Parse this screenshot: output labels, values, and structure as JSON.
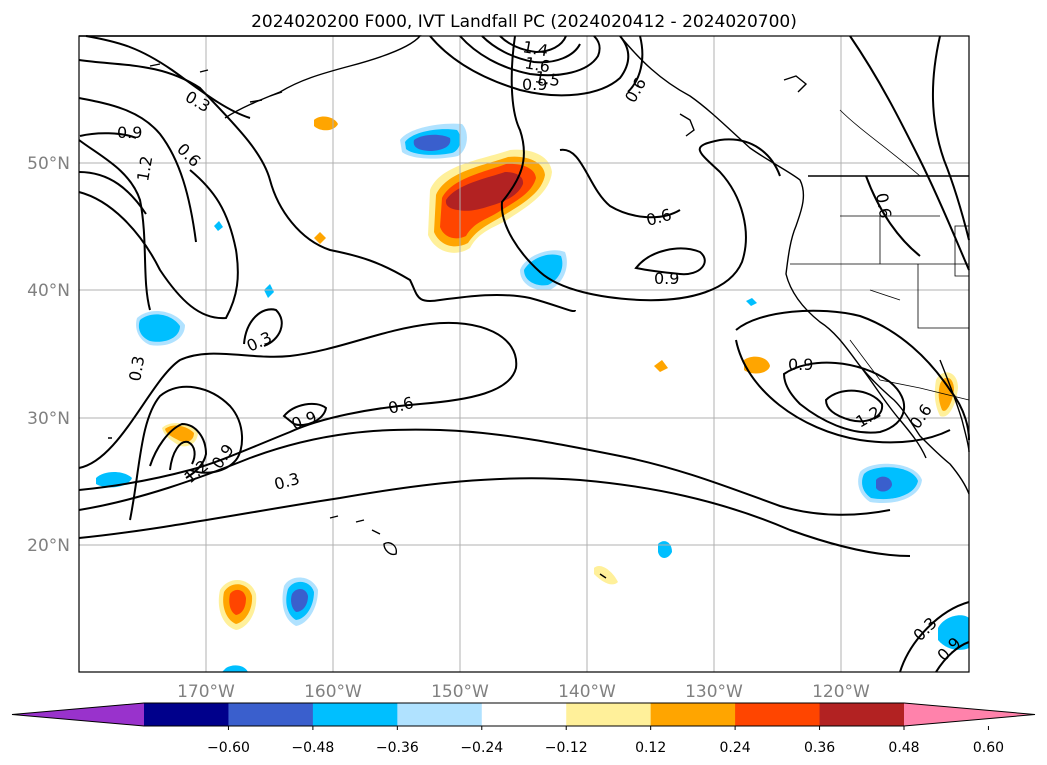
{
  "title": "2024020200 F000, IVT Landfall PC (2024020412 - 2024020700)",
  "lat_labels": [
    "50°N",
    "40°N",
    "30°N",
    "20°N"
  ],
  "lon_labels": [
    "170°W",
    "160°W",
    "150°W",
    "140°W",
    "130°W",
    "120°W"
  ],
  "colorbar": {
    "ticks": [
      "−0.60",
      "−0.48",
      "−0.36",
      "−0.24",
      "−0.12",
      "0.12",
      "0.24",
      "0.36",
      "0.48",
      "0.60"
    ],
    "colors": [
      "#9932cc",
      "#00008b",
      "#3a5fcd",
      "#00bfff",
      "#b0e2ff",
      "#ffffff",
      "#fff09a",
      "#ffa500",
      "#ff4500",
      "#b22222",
      "#ff82ab"
    ]
  },
  "contour_labels": {
    "c03a": "0.3",
    "c03b": "0.3",
    "c03c": "0.3",
    "c03d": "0.3",
    "c03e": "0.3",
    "c06a": "0.6",
    "c06b": "0.6",
    "c06c": "0.6",
    "c06d": "0.6",
    "c06e": "0.6",
    "c06f": "0.6",
    "c09a": "0.9",
    "c09b": "0.9",
    "c09c": "0.9",
    "c09d": "0.9",
    "c09e": "0.9",
    "c09f": "0.9",
    "c12a": "1.2",
    "c12b": "1.2",
    "c12c": "1.2",
    "c15": "1.5",
    "c14": "1.4",
    "c16": "1.6",
    "c08": "0.9"
  }
}
